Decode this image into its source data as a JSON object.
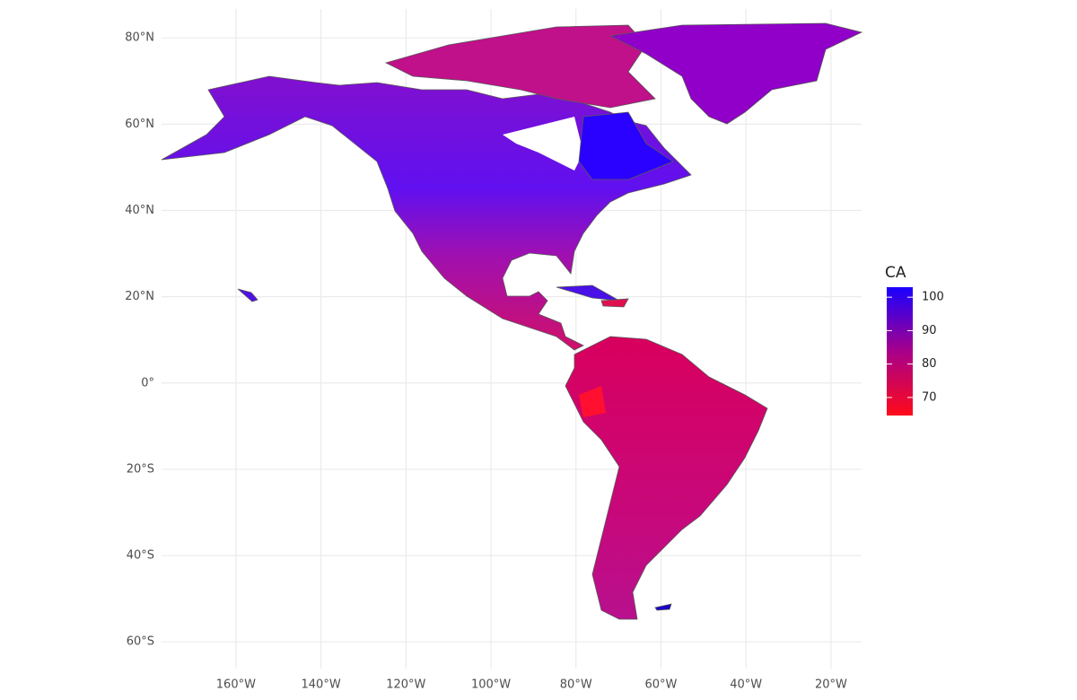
{
  "chart_data": {
    "type": "map",
    "xlim": [
      -177.5,
      -12.8
    ],
    "ylim": [
      -66.2,
      86.7
    ],
    "xticks": [
      {
        "value": -160,
        "label": "160°W"
      },
      {
        "value": -140,
        "label": "140°W"
      },
      {
        "value": -120,
        "label": "120°W"
      },
      {
        "value": -100,
        "label": "100°W"
      },
      {
        "value": -80,
        "label": "80°W"
      },
      {
        "value": -60,
        "label": "60°W"
      },
      {
        "value": -40,
        "label": "40°W"
      },
      {
        "value": -20,
        "label": "20°W"
      }
    ],
    "yticks": [
      {
        "value": -60,
        "label": "60°S"
      },
      {
        "value": -40,
        "label": "40°S"
      },
      {
        "value": -20,
        "label": "20°S"
      },
      {
        "value": 0,
        "label": "0°"
      },
      {
        "value": 20,
        "label": "20°N"
      },
      {
        "value": 40,
        "label": "40°N"
      },
      {
        "value": 60,
        "label": "60°N"
      },
      {
        "value": 80,
        "label": "80°N"
      }
    ],
    "grid": true,
    "legend": {
      "title": "CA",
      "lim": [
        64.6,
        103
      ],
      "ticks": [
        70,
        80,
        90,
        100
      ],
      "colors": [
        "#ff0a1a",
        "#1a00ff"
      ]
    }
  }
}
